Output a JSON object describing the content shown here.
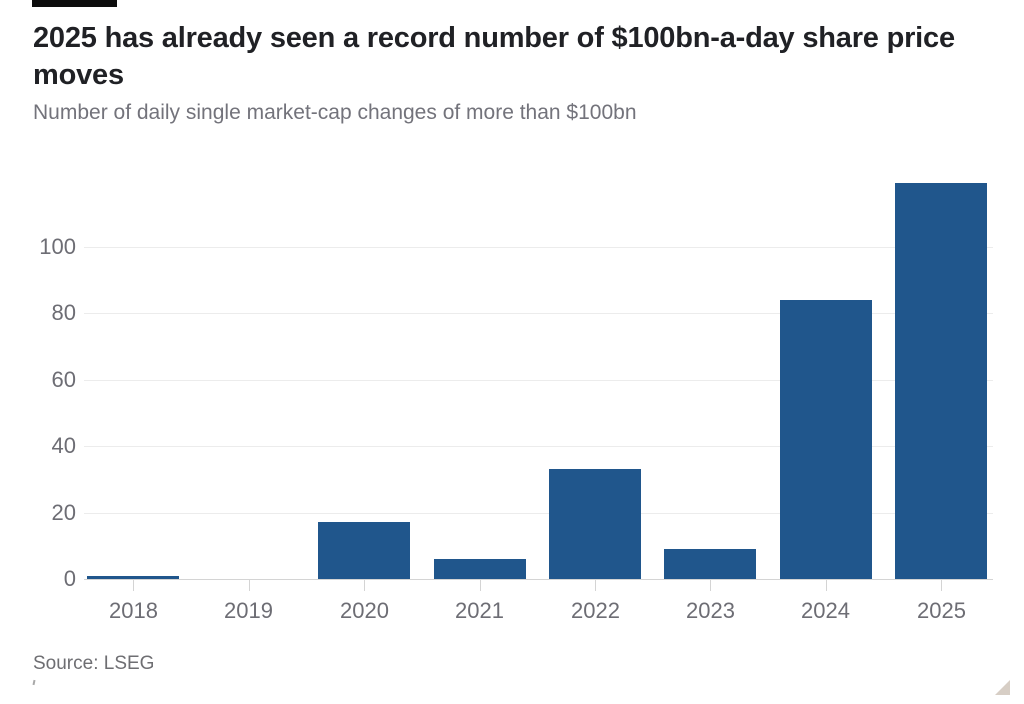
{
  "header": {
    "tag_bar_color": "#0d0d0d"
  },
  "chart_data": {
    "type": "bar",
    "title": "2025 has already seen a record number of $100bn-a-day share price moves",
    "subtitle": "Number of daily single market-cap changes of more than $100bn",
    "source": "Source: LSEG",
    "categories": [
      "2018",
      "2019",
      "2020",
      "2021",
      "2022",
      "2023",
      "2024",
      "2025"
    ],
    "values": [
      1,
      0,
      17,
      6,
      33,
      9,
      84,
      119
    ],
    "yticks": [
      0,
      20,
      40,
      60,
      80,
      100
    ],
    "ylim": [
      0,
      123
    ],
    "xlabel": "",
    "ylabel": "",
    "grid": "horizontal-only",
    "legend_position": "none",
    "bar_color": "#20568C",
    "axis_label_color": "#6d6d74",
    "gridline_color": "#ececec",
    "baseline_color": "#d4d4d4"
  }
}
